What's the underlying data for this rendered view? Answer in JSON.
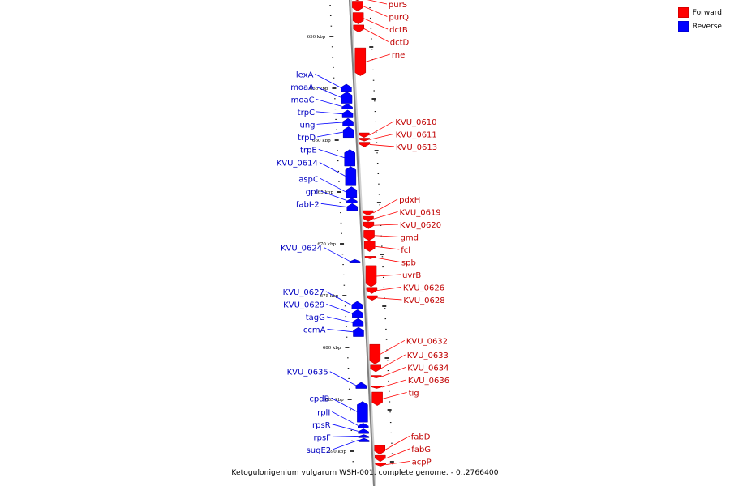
{
  "caption": "Ketogulonigenium vulgarum WSH-001, complete genome. - 0..2766400",
  "legend": [
    {
      "label": "Forward",
      "color": "#ff0000"
    },
    {
      "label": "Reverse",
      "color": "#0000ff"
    }
  ],
  "colors": {
    "forward": "#ff0000",
    "reverse": "#0000ff",
    "axis": "#808080"
  },
  "ticks": [
    {
      "kbp": 650,
      "label": "650 kbp"
    },
    {
      "kbp": 655,
      "label": "655 kbp"
    },
    {
      "kbp": 660,
      "label": "660 kbp"
    },
    {
      "kbp": 665,
      "label": "665 kbp"
    },
    {
      "kbp": 670,
      "label": "670 kbp"
    },
    {
      "kbp": 675,
      "label": "675 kbp"
    },
    {
      "kbp": 680,
      "label": "680 kbp"
    },
    {
      "kbp": 685,
      "label": "685 kbp"
    },
    {
      "kbp": 690,
      "label": "690 kbp"
    }
  ],
  "forward_genes": [
    {
      "name": "purS",
      "start": 646.15,
      "end": 646.55
    },
    {
      "name": "purQ",
      "start": 646.6,
      "end": 647.55
    },
    {
      "name": "dctB",
      "start": 647.7,
      "end": 648.8
    },
    {
      "name": "dctD",
      "start": 648.9,
      "end": 649.6
    },
    {
      "name": "rne",
      "start": 651.1,
      "end": 653.8
    },
    {
      "name": "KVU_0610",
      "start": 659.3,
      "end": 659.75
    },
    {
      "name": "KVU_0611",
      "start": 659.8,
      "end": 660.1
    },
    {
      "name": "KVU_0613",
      "start": 660.2,
      "end": 660.65
    },
    {
      "name": "pdxH",
      "start": 666.8,
      "end": 667.25
    },
    {
      "name": "KVU_0619",
      "start": 667.35,
      "end": 667.85
    },
    {
      "name": "KVU_0620",
      "start": 667.9,
      "end": 668.55
    },
    {
      "name": "gmd",
      "start": 668.7,
      "end": 669.7
    },
    {
      "name": "fcl",
      "start": 669.75,
      "end": 670.75
    },
    {
      "name": "spb",
      "start": 671.2,
      "end": 671.45
    },
    {
      "name": "uvrB",
      "start": 672.1,
      "end": 674.15
    },
    {
      "name": "KVU_0626",
      "start": 674.2,
      "end": 674.8
    },
    {
      "name": "KVU_0628",
      "start": 675.0,
      "end": 675.45
    },
    {
      "name": "KVU_0632",
      "start": 679.7,
      "end": 681.6
    },
    {
      "name": "KVU_0633",
      "start": 681.7,
      "end": 682.35
    },
    {
      "name": "KVU_0634",
      "start": 682.7,
      "end": 682.95
    },
    {
      "name": "KVU_0636",
      "start": 683.7,
      "end": 683.95
    },
    {
      "name": "tig",
      "start": 684.3,
      "end": 685.6
    },
    {
      "name": "fabD",
      "start": 689.45,
      "end": 690.3
    },
    {
      "name": "fabG",
      "start": 690.4,
      "end": 691.0
    },
    {
      "name": "acpP",
      "start": 691.15,
      "end": 691.45
    }
  ],
  "reverse_genes": [
    {
      "name": "lexA",
      "start": 654.6,
      "end": 655.3
    },
    {
      "name": "moaA",
      "start": 655.35,
      "end": 656.45
    },
    {
      "name": "moaC",
      "start": 656.5,
      "end": 657.0
    },
    {
      "name": "trpC",
      "start": 657.1,
      "end": 657.85
    },
    {
      "name": "ung",
      "start": 657.9,
      "end": 658.65
    },
    {
      "name": "trpD",
      "start": 658.7,
      "end": 659.75
    },
    {
      "name": "trpE",
      "start": 660.9,
      "end": 662.5
    },
    {
      "name": "KVU_0614",
      "start": 662.55,
      "end": 664.4
    },
    {
      "name": "aspC",
      "start": 664.5,
      "end": 665.55
    },
    {
      "name": "gpt",
      "start": 665.6,
      "end": 666.05
    },
    {
      "name": "fabI-2",
      "start": 666.1,
      "end": 666.8
    },
    {
      "name": "KVU_0624",
      "start": 671.5,
      "end": 671.85
    },
    {
      "name": "KVU_0627",
      "start": 675.55,
      "end": 676.3
    },
    {
      "name": "KVU_0629",
      "start": 676.35,
      "end": 677.1
    },
    {
      "name": "tagG",
      "start": 677.2,
      "end": 678.0
    },
    {
      "name": "ccmA",
      "start": 678.05,
      "end": 678.95
    },
    {
      "name": "KVU_0635",
      "start": 683.35,
      "end": 683.95
    },
    {
      "name": "cpdB",
      "start": 685.2,
      "end": 687.2
    },
    {
      "name": "rplI",
      "start": 687.3,
      "end": 687.75
    },
    {
      "name": "rpsR",
      "start": 687.85,
      "end": 688.3
    },
    {
      "name": "rpsF",
      "start": 688.4,
      "end": 688.7
    },
    {
      "name": "sugE2",
      "start": 688.75,
      "end": 689.1
    }
  ]
}
